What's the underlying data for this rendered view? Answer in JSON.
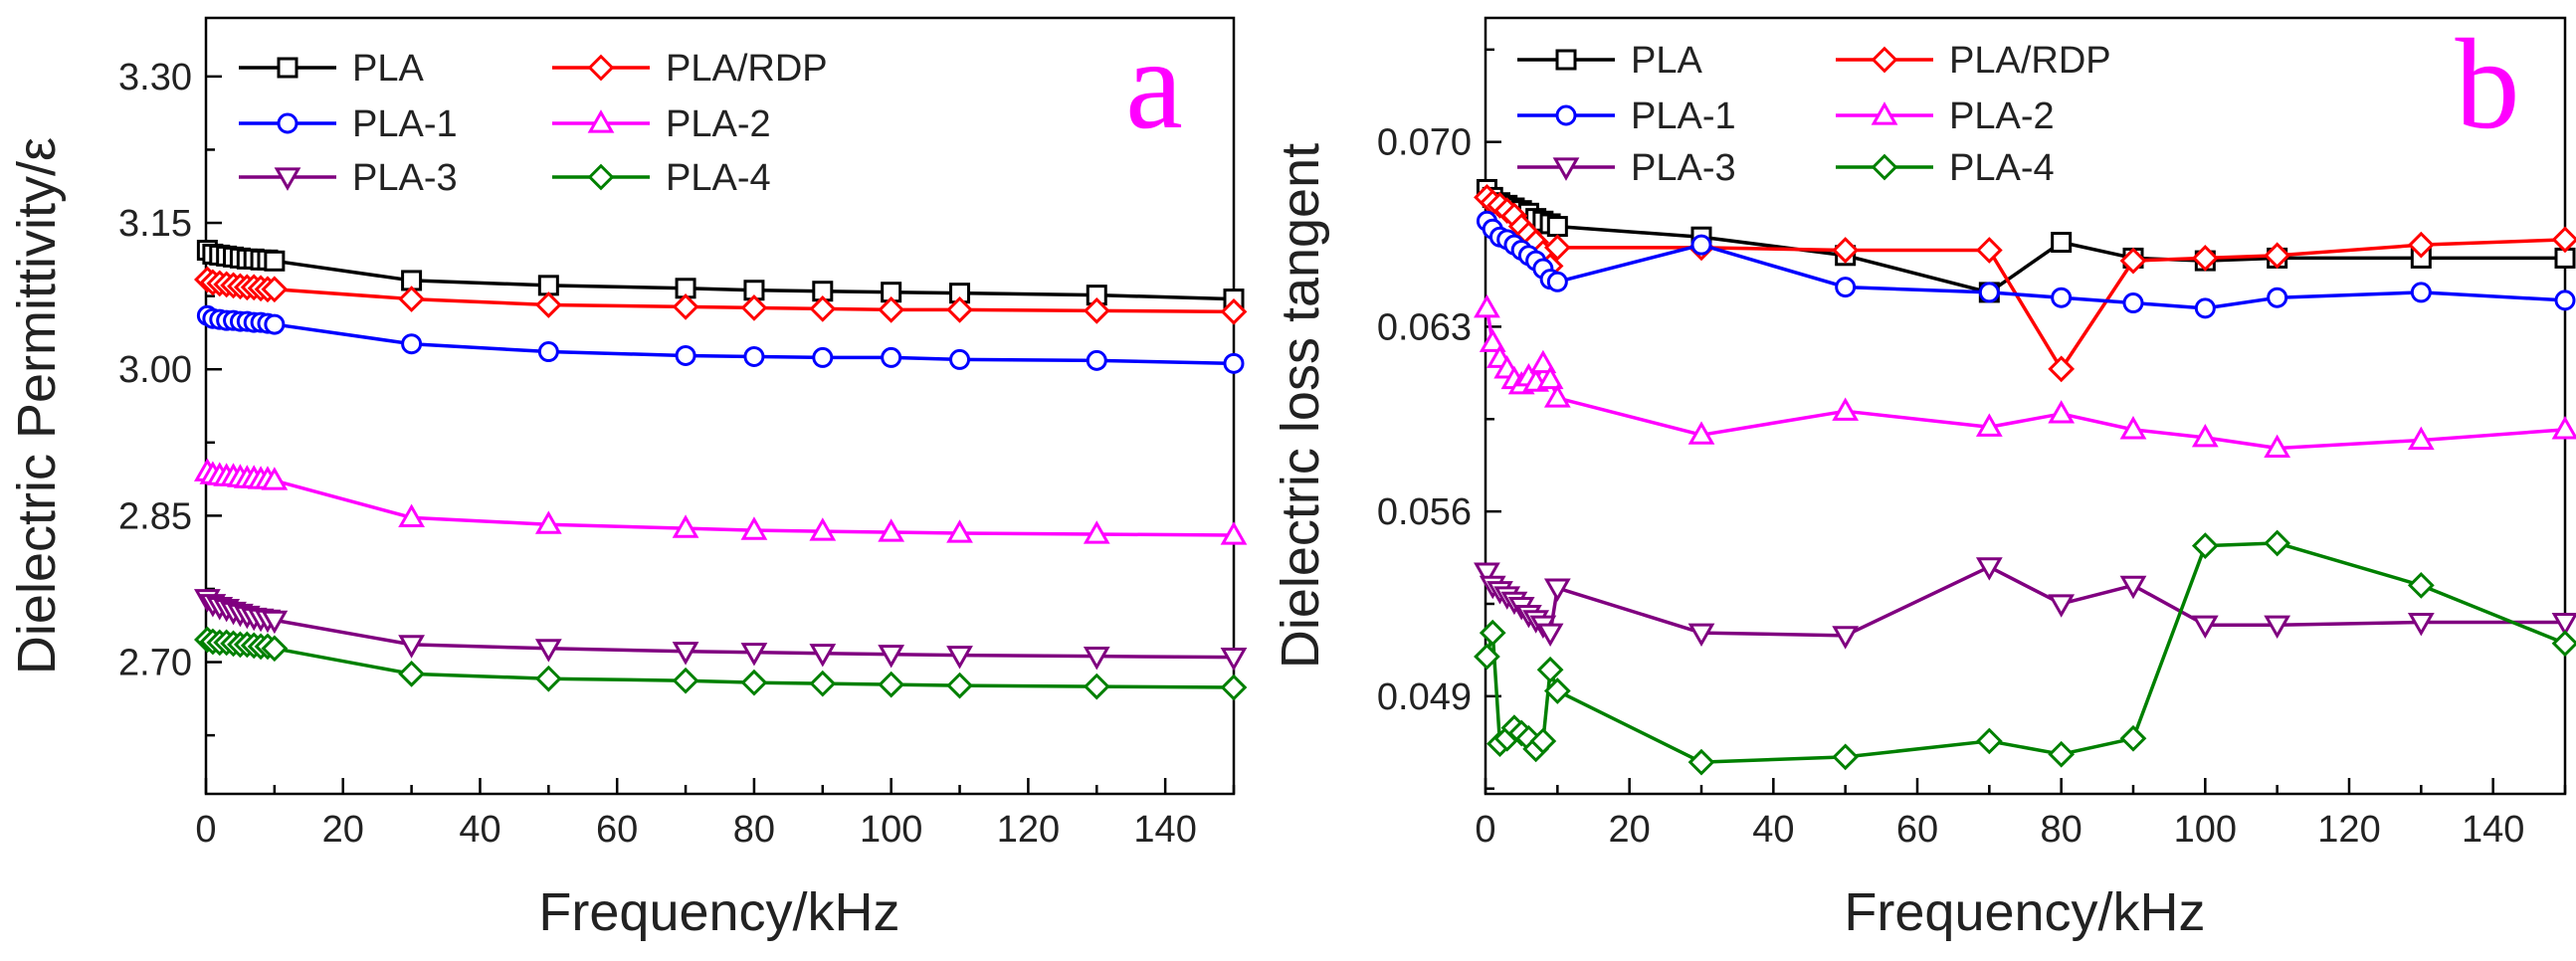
{
  "figure": {
    "panel_labels": [
      "a",
      "b"
    ]
  },
  "colors": {
    "PLA": "#000000",
    "PLA/RDP": "#ff0000",
    "PLA-1": "#0000ff",
    "PLA-2": "#ff00ff",
    "PLA-3": "#800080",
    "PLA-4": "#008000",
    "panel_letter": "#ff00ff"
  },
  "chart_data": [
    {
      "panel": "a",
      "type": "line",
      "xlabel": "Frequency/kHz",
      "ylabel": "Dielectric Permittivity/ε",
      "xlim": [
        0,
        150
      ],
      "ylim": [
        2.565,
        3.36
      ],
      "xticks": [
        0,
        20,
        40,
        60,
        80,
        100,
        120,
        140
      ],
      "yticks": [
        2.7,
        2.85,
        3.0,
        3.15,
        3.3
      ],
      "ytick_labels": [
        "2.70",
        "2.85",
        "3.00",
        "3.15",
        "3.30"
      ],
      "legend": [
        {
          "name": "PLA",
          "marker": "square"
        },
        {
          "name": "PLA/RDP",
          "marker": "diamond"
        },
        {
          "name": "PLA-1",
          "marker": "circle"
        },
        {
          "name": "PLA-2",
          "marker": "triangle-up"
        },
        {
          "name": "PLA-3",
          "marker": "triangle-down"
        },
        {
          "name": "PLA-4",
          "marker": "diamond"
        }
      ],
      "series": [
        {
          "name": "PLA",
          "marker": "square",
          "x": [
            0.2,
            1,
            2,
            3,
            4,
            5,
            6,
            7,
            8,
            9,
            10,
            30,
            50,
            70,
            80,
            90,
            100,
            110,
            130,
            150
          ],
          "y": [
            3.122,
            3.118,
            3.117,
            3.116,
            3.115,
            3.114,
            3.113,
            3.113,
            3.112,
            3.112,
            3.111,
            3.091,
            3.086,
            3.083,
            3.081,
            3.08,
            3.079,
            3.078,
            3.076,
            3.072
          ]
        },
        {
          "name": "PLA/RDP",
          "marker": "diamond",
          "x": [
            0.2,
            1,
            2,
            3,
            4,
            5,
            6,
            7,
            8,
            9,
            10,
            30,
            50,
            70,
            80,
            90,
            100,
            110,
            130,
            150
          ],
          "y": [
            3.092,
            3.089,
            3.088,
            3.087,
            3.086,
            3.085,
            3.084,
            3.084,
            3.083,
            3.082,
            3.082,
            3.072,
            3.066,
            3.064,
            3.063,
            3.062,
            3.061,
            3.061,
            3.06,
            3.059
          ]
        },
        {
          "name": "PLA-1",
          "marker": "circle",
          "x": [
            0.2,
            1,
            2,
            3,
            4,
            5,
            6,
            7,
            8,
            9,
            10,
            30,
            50,
            70,
            80,
            90,
            100,
            110,
            130,
            150
          ],
          "y": [
            3.055,
            3.052,
            3.051,
            3.05,
            3.05,
            3.049,
            3.049,
            3.048,
            3.048,
            3.047,
            3.046,
            3.026,
            3.018,
            3.014,
            3.013,
            3.012,
            3.012,
            3.01,
            3.009,
            3.006
          ]
        },
        {
          "name": "PLA-2",
          "marker": "triangle-up",
          "x": [
            0.2,
            1,
            2,
            3,
            4,
            5,
            6,
            7,
            8,
            9,
            10,
            30,
            50,
            70,
            80,
            90,
            100,
            110,
            130,
            150
          ],
          "y": [
            2.895,
            2.892,
            2.891,
            2.89,
            2.89,
            2.889,
            2.888,
            2.888,
            2.887,
            2.887,
            2.886,
            2.848,
            2.841,
            2.837,
            2.835,
            2.834,
            2.833,
            2.832,
            2.831,
            2.83
          ]
        },
        {
          "name": "PLA-3",
          "marker": "triangle-down",
          "x": [
            0.2,
            1,
            2,
            3,
            4,
            5,
            6,
            7,
            8,
            9,
            10,
            30,
            50,
            70,
            80,
            90,
            100,
            110,
            130,
            150
          ],
          "y": [
            2.765,
            2.76,
            2.757,
            2.755,
            2.752,
            2.75,
            2.748,
            2.746,
            2.745,
            2.744,
            2.743,
            2.718,
            2.714,
            2.711,
            2.71,
            2.709,
            2.708,
            2.707,
            2.706,
            2.705
          ]
        },
        {
          "name": "PLA-4",
          "marker": "diamond",
          "x": [
            0.2,
            1,
            2,
            3,
            4,
            5,
            6,
            7,
            8,
            9,
            10,
            30,
            50,
            70,
            80,
            90,
            100,
            110,
            130,
            150
          ],
          "y": [
            2.723,
            2.721,
            2.72,
            2.72,
            2.719,
            2.718,
            2.718,
            2.717,
            2.716,
            2.716,
            2.714,
            2.688,
            2.683,
            2.681,
            2.679,
            2.678,
            2.677,
            2.676,
            2.675,
            2.674
          ]
        }
      ]
    },
    {
      "panel": "b",
      "type": "line",
      "xlabel": "Frequency/kHz",
      "ylabel": "Dielectric loss tangent",
      "xlim": [
        0,
        150
      ],
      "ylim": [
        0.0453,
        0.0747
      ],
      "xticks": [
        0,
        20,
        40,
        60,
        80,
        100,
        120,
        140
      ],
      "yticks": [
        0.049,
        0.056,
        0.063,
        0.07
      ],
      "ytick_labels": [
        "0.049",
        "0.056",
        "0.063",
        "0.070"
      ],
      "legend": [
        {
          "name": "PLA",
          "marker": "square"
        },
        {
          "name": "PLA/RDP",
          "marker": "diamond"
        },
        {
          "name": "PLA-1",
          "marker": "circle"
        },
        {
          "name": "PLA-2",
          "marker": "triangle-up"
        },
        {
          "name": "PLA-3",
          "marker": "triangle-down"
        },
        {
          "name": "PLA-4",
          "marker": "diamond"
        }
      ],
      "series": [
        {
          "name": "PLA",
          "marker": "square",
          "x": [
            0.2,
            1,
            2,
            3,
            4,
            5,
            6,
            7,
            8,
            9,
            10,
            30,
            50,
            70,
            80,
            90,
            100,
            110,
            130,
            150
          ],
          "y": [
            0.0682,
            0.0679,
            0.0677,
            0.0676,
            0.0675,
            0.0674,
            0.0673,
            0.0671,
            0.067,
            0.0669,
            0.0668,
            0.0664,
            0.0657,
            0.0643,
            0.0662,
            0.0656,
            0.0655,
            0.0656,
            0.0656,
            0.0656
          ]
        },
        {
          "name": "PLA/RDP",
          "marker": "diamond",
          "x": [
            0.2,
            1,
            2,
            3,
            4,
            5,
            6,
            7,
            8,
            9,
            10,
            30,
            50,
            70,
            80,
            90,
            100,
            110,
            130,
            150
          ],
          "y": [
            0.0679,
            0.0677,
            0.0676,
            0.0674,
            0.0672,
            0.0668,
            0.0665,
            0.0662,
            0.0658,
            0.0653,
            0.066,
            0.066,
            0.0659,
            0.0659,
            0.0614,
            0.0655,
            0.0656,
            0.0657,
            0.0661,
            0.0663
          ]
        },
        {
          "name": "PLA-1",
          "marker": "circle",
          "x": [
            0.2,
            1,
            2,
            3,
            4,
            5,
            6,
            7,
            8,
            9,
            10,
            30,
            50,
            70,
            80,
            90,
            100,
            110,
            130,
            150
          ],
          "y": [
            0.067,
            0.0667,
            0.0664,
            0.0663,
            0.0661,
            0.0659,
            0.0657,
            0.0655,
            0.0652,
            0.0648,
            0.0647,
            0.0661,
            0.0645,
            0.0643,
            0.0641,
            0.0639,
            0.0637,
            0.0641,
            0.0643,
            0.064
          ]
        },
        {
          "name": "PLA-2",
          "marker": "triangle-up",
          "x": [
            0.2,
            1,
            2,
            3,
            4,
            5,
            6,
            7,
            8,
            9,
            10,
            30,
            50,
            70,
            80,
            90,
            100,
            110,
            130,
            150
          ],
          "y": [
            0.0637,
            0.0624,
            0.0618,
            0.0614,
            0.061,
            0.0608,
            0.0611,
            0.0609,
            0.0616,
            0.061,
            0.0603,
            0.0589,
            0.0598,
            0.0592,
            0.0597,
            0.0591,
            0.0588,
            0.0584,
            0.0587,
            0.0591
          ]
        },
        {
          "name": "PLA-3",
          "marker": "triangle-down",
          "x": [
            0.2,
            1,
            2,
            3,
            4,
            5,
            6,
            7,
            8,
            9,
            10,
            30,
            50,
            70,
            80,
            90,
            100,
            110,
            130,
            150
          ],
          "y": [
            0.0537,
            0.0532,
            0.053,
            0.0528,
            0.0526,
            0.0524,
            0.0521,
            0.0519,
            0.0517,
            0.0514,
            0.0531,
            0.0514,
            0.0513,
            0.0539,
            0.0525,
            0.0532,
            0.0517,
            0.0517,
            0.0518,
            0.0518
          ]
        },
        {
          "name": "PLA-4",
          "marker": "diamond",
          "x": [
            0.2,
            1,
            2,
            3,
            4,
            5,
            6,
            7,
            8,
            9,
            10,
            30,
            50,
            70,
            80,
            90,
            100,
            110,
            130,
            150
          ],
          "y": [
            0.0505,
            0.0514,
            0.0472,
            0.0474,
            0.0478,
            0.0476,
            0.0474,
            0.047,
            0.0473,
            0.05,
            0.0492,
            0.0465,
            0.0467,
            0.0473,
            0.0468,
            0.0474,
            0.0547,
            0.0548,
            0.0532,
            0.051
          ]
        }
      ]
    }
  ]
}
